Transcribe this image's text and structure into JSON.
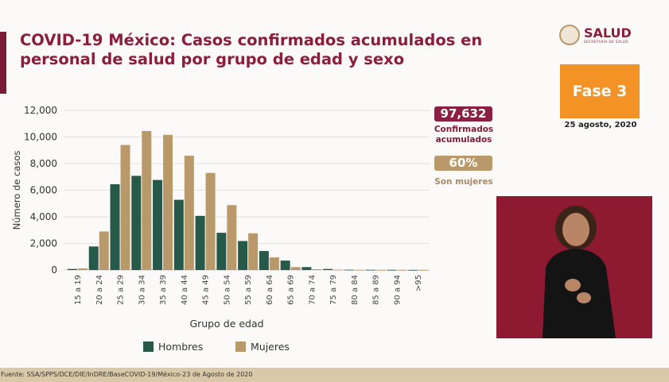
{
  "slide": {
    "title": "COVID-19 México: Casos confirmados acumulados en personal de salud por grupo de edad y sexo",
    "logo_text": "SALUD",
    "logo_subtext": "SECRETARÍA DE SALUD",
    "phase": "Fase 3",
    "date": "25 agosto, 2020",
    "confirmed_total": "97,632",
    "confirmed_label": "Confirmados acumulados",
    "women_pct": "60%",
    "women_label": "Son mujeres",
    "source": "Fuente: SSA/SPPS/DCE/DIE/InDRE/BaseCOVID-19/México-23 de Agosto de 2020"
  },
  "colors": {
    "hombres": "#27594a",
    "mujeres": "#b9986a",
    "maroon": "#8b2042",
    "phase": "#f39325"
  },
  "chart_data": {
    "type": "bar",
    "xlabel": "Grupo de edad",
    "ylabel": "Número de casos",
    "ylim": [
      0,
      12000
    ],
    "yticks": [
      "0",
      "2,000",
      "4,000",
      "6,000",
      "8,000",
      "10,000",
      "12,000"
    ],
    "grid": true,
    "legend_position": "bottom",
    "categories": [
      "15 a 19",
      "20 a 24",
      "25 a 29",
      "30 a 34",
      "35 a 39",
      "40 a 44",
      "45 a 49",
      "50 a 54",
      "55 a 59",
      "60 a 64",
      "65 a 69",
      "70 a 74",
      "75 a 79",
      "80 a 84",
      "85 a 89",
      "90 a 94",
      ">95"
    ],
    "series": [
      {
        "name": "Hombres",
        "values": [
          80,
          1770,
          6450,
          7080,
          6770,
          5280,
          4070,
          2800,
          2180,
          1430,
          710,
          220,
          80,
          20,
          15,
          10,
          5
        ]
      },
      {
        "name": "Mujeres",
        "values": [
          120,
          2900,
          9400,
          10450,
          10160,
          8590,
          7300,
          4880,
          2760,
          950,
          220,
          60,
          20,
          10,
          5,
          5,
          2
        ]
      }
    ]
  }
}
